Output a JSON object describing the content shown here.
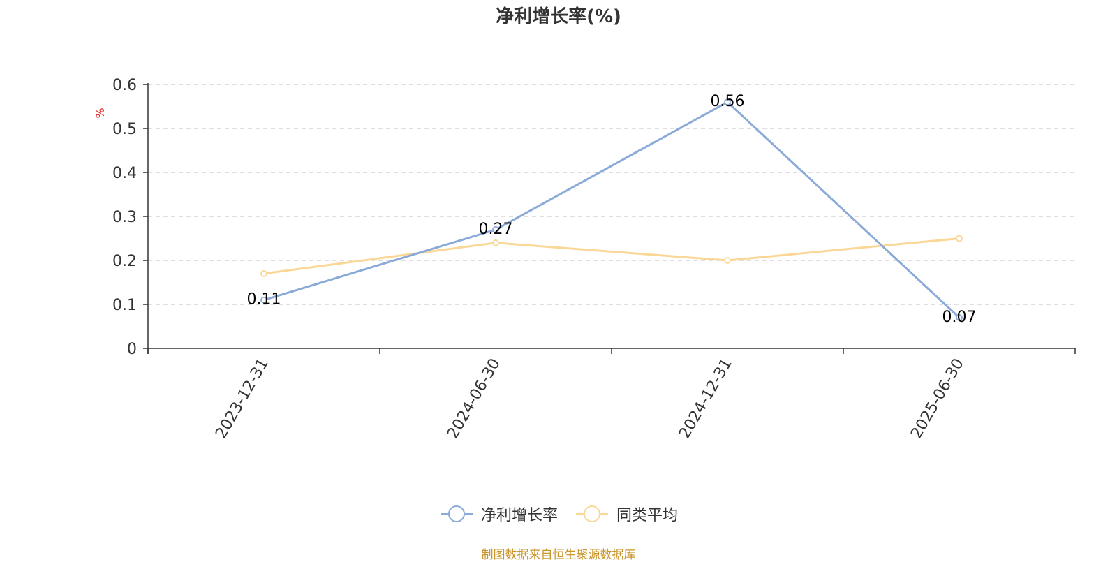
{
  "title": "净利增长率(%)",
  "source_note": "制图数据来自恒生聚源数据库",
  "colors": {
    "series_main": "#8aaad8",
    "series_avg": "#fad797",
    "axis": "#333333",
    "grid": "#cccccc",
    "unit_label": "#e02020",
    "source": "#c9962b"
  },
  "chart_data": {
    "type": "line",
    "title": "净利增长率(%)",
    "ylabel": "%",
    "xlabel": "",
    "categories": [
      "2023-12-31",
      "2024-06-30",
      "2024-12-31",
      "2025-06-30"
    ],
    "ylim": [
      0,
      0.6
    ],
    "yticks": [
      0,
      0.1,
      0.2,
      0.3,
      0.4,
      0.5,
      0.6
    ],
    "grid": true,
    "legend_position": "bottom-center",
    "series": [
      {
        "name": "净利增长率",
        "values": [
          0.11,
          0.27,
          0.56,
          0.07
        ],
        "data_labels": [
          "0.11",
          "0.27",
          "0.56",
          "0.07"
        ],
        "color": "#8aaad8"
      },
      {
        "name": "同类平均",
        "values": [
          0.17,
          0.24,
          0.2,
          0.25
        ],
        "color": "#fad797"
      }
    ]
  }
}
